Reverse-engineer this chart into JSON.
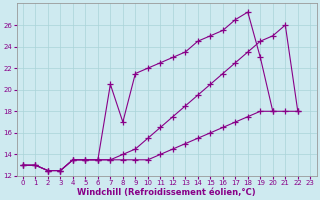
{
  "title": "",
  "xlabel": "Windchill (Refroidissement éolien,°C)",
  "background_color": "#ceeaf0",
  "line_color": "#880088",
  "grid_color": "#aad4d8",
  "lines": [
    {
      "x": [
        0,
        1,
        2,
        3,
        4,
        5,
        6,
        7,
        8,
        9,
        10,
        11,
        12,
        13,
        14,
        15,
        16,
        17,
        18,
        19,
        20,
        21,
        22
      ],
      "y": [
        13,
        13,
        12.5,
        12.5,
        13.5,
        13.5,
        13.5,
        13.5,
        14,
        14.5,
        15.5,
        16.5,
        17.5,
        18.5,
        19.5,
        20.5,
        21.5,
        22.5,
        23.5,
        24.5,
        25,
        26,
        18
      ]
    },
    {
      "x": [
        0,
        1,
        2,
        3,
        4,
        5,
        6,
        7,
        8,
        9,
        10,
        11,
        12,
        13,
        14,
        15,
        16,
        17,
        18,
        19,
        20
      ],
      "y": [
        13,
        13,
        12.5,
        12.5,
        13.5,
        13.5,
        13.5,
        20.5,
        17,
        21.5,
        22,
        22.5,
        23,
        23.5,
        24.5,
        25,
        25.5,
        26.5,
        27.2,
        23,
        18
      ]
    },
    {
      "x": [
        0,
        1,
        2,
        3,
        4,
        5,
        6,
        7,
        8,
        9,
        10,
        11,
        12,
        13,
        14,
        15,
        16,
        17,
        18,
        19,
        20,
        21,
        22
      ],
      "y": [
        13,
        13,
        12.5,
        12.5,
        13.5,
        13.5,
        13.5,
        13.5,
        13.5,
        13.5,
        13.5,
        14,
        14.5,
        15,
        15.5,
        16,
        16.5,
        17,
        17.5,
        18,
        18,
        18,
        18
      ]
    }
  ],
  "xlim": [
    -0.5,
    23.5
  ],
  "ylim": [
    12,
    28
  ],
  "yticks": [
    12,
    14,
    16,
    18,
    20,
    22,
    24,
    26
  ],
  "xticks": [
    0,
    1,
    2,
    3,
    4,
    5,
    6,
    7,
    8,
    9,
    10,
    11,
    12,
    13,
    14,
    15,
    16,
    17,
    18,
    19,
    20,
    21,
    22,
    23
  ],
  "marker": "+",
  "markersize": 4,
  "linewidth": 0.8,
  "tick_labelsize": 5.0,
  "xlabel_fontsize": 6.0
}
